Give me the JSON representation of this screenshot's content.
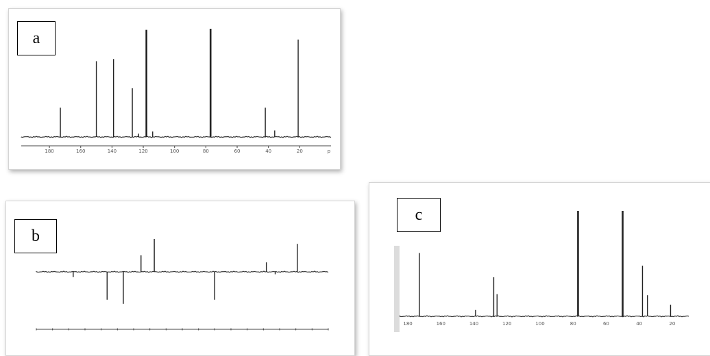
{
  "panels": {
    "a": {
      "label": "a"
    },
    "b": {
      "label": "b"
    },
    "c": {
      "label": "c"
    }
  },
  "colors": {
    "trace": "#222222",
    "axis": "#444444",
    "frame_shadow": "#999999"
  },
  "chart_data": [
    {
      "type": "line",
      "panel": "a",
      "title": "",
      "xlabel": "",
      "ylabel": "",
      "xlim": [
        198,
        0
      ],
      "x_tick_values": [
        180,
        160,
        140,
        120,
        100,
        80,
        60,
        40,
        20
      ],
      "x_tick_labels": [
        "180",
        "160",
        "140",
        "120",
        "100",
        "80",
        "60",
        "40",
        "20"
      ],
      "x_axis_end_label": "p",
      "ylim": [
        0,
        1
      ],
      "peaks": [
        {
          "x": 173,
          "y": 0.27
        },
        {
          "x": 150,
          "y": 0.7
        },
        {
          "x": 139,
          "y": 0.72
        },
        {
          "x": 127,
          "y": 0.45
        },
        {
          "x": 123,
          "y": 0.03
        },
        {
          "x": 118,
          "y": 0.99
        },
        {
          "x": 114,
          "y": 0.05
        },
        {
          "x": 77.0,
          "y": 1.0
        },
        {
          "x": 42,
          "y": 0.27
        },
        {
          "x": 36,
          "y": 0.06
        },
        {
          "x": 21,
          "y": 0.9
        }
      ]
    },
    {
      "type": "line",
      "panel": "b",
      "title": "",
      "xlabel": "",
      "ylabel": "",
      "xlim": [
        198,
        0
      ],
      "x_tick_count": 19,
      "ylim": [
        -1,
        1
      ],
      "peaks": [
        {
          "x": 173,
          "y": -0.13
        },
        {
          "x": 150,
          "y": -0.68
        },
        {
          "x": 139,
          "y": -0.78
        },
        {
          "x": 127,
          "y": 0.4
        },
        {
          "x": 118,
          "y": 0.8
        },
        {
          "x": 77,
          "y": -0.68
        },
        {
          "x": 42,
          "y": 0.23
        },
        {
          "x": 36,
          "y": -0.06
        },
        {
          "x": 21,
          "y": 0.68
        }
      ]
    },
    {
      "type": "line",
      "panel": "c",
      "title": "",
      "xlabel": "",
      "ylabel": "",
      "xlim": [
        185,
        10
      ],
      "x_tick_values": [
        180,
        160,
        140,
        120,
        100,
        80,
        60,
        40,
        20
      ],
      "x_tick_labels": [
        "180",
        "160",
        "140",
        "120",
        "100",
        "80",
        "60",
        "40",
        "20"
      ],
      "ylim": [
        0,
        1
      ],
      "peaks": [
        {
          "x": 173,
          "y": 0.6
        },
        {
          "x": 139,
          "y": 0.06
        },
        {
          "x": 128,
          "y": 0.37
        },
        {
          "x": 126,
          "y": 0.21
        },
        {
          "x": 77,
          "y": 1.0
        },
        {
          "x": 50,
          "y": 1.0
        },
        {
          "x": 38,
          "y": 0.48
        },
        {
          "x": 35,
          "y": 0.2
        },
        {
          "x": 21,
          "y": 0.11
        }
      ]
    }
  ]
}
